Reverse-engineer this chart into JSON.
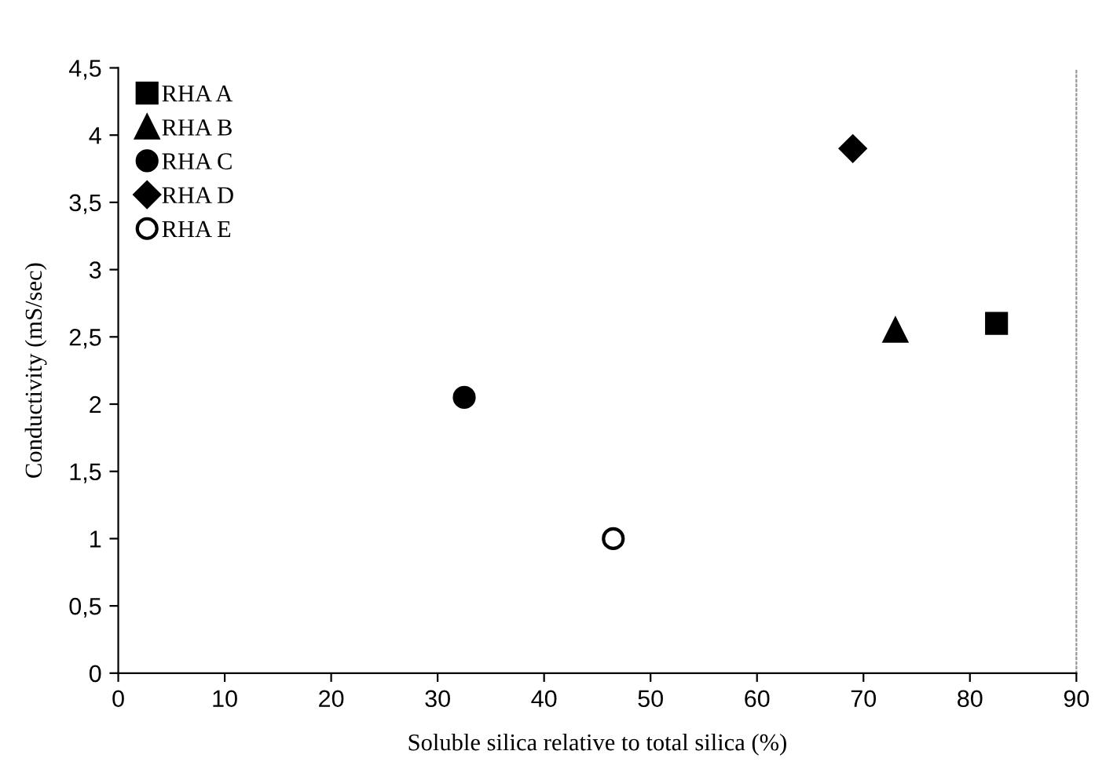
{
  "chart_data": {
    "type": "scatter",
    "xlabel": "Soluble silica relative to total silica (%)",
    "ylabel": "Conductivity (mS/sec)",
    "xlim": [
      0,
      90
    ],
    "xticks": [
      0,
      10,
      20,
      30,
      40,
      50,
      60,
      70,
      80,
      90
    ],
    "ylim": [
      0,
      4.5
    ],
    "yticks": [
      0,
      {
        "value": 0.5,
        "label": "0,5"
      },
      1,
      {
        "value": 1.5,
        "label": "1,5"
      },
      2,
      {
        "value": 2.5,
        "label": "2,5"
      },
      3,
      {
        "value": 3.5,
        "label": "3,5"
      },
      4,
      {
        "value": 4.5,
        "label": "4,5"
      }
    ],
    "grid": false,
    "legend": "top left",
    "series": [
      {
        "name": "RHA A",
        "color": "#000000",
        "marker": "square",
        "x": [
          82.5
        ],
        "values": [
          2.6
        ]
      },
      {
        "name": "RHA B",
        "color": "#000000",
        "marker": "triangle",
        "x": [
          73
        ],
        "values": [
          2.55
        ]
      },
      {
        "name": "RHA C",
        "color": "#000000",
        "marker": "circle",
        "x": [
          32.5
        ],
        "values": [
          2.05
        ]
      },
      {
        "name": "RHA D",
        "color": "#000000",
        "marker": "diamond",
        "x": [
          69
        ],
        "values": [
          3.9
        ]
      },
      {
        "name": "RHA E",
        "color": "#ffffff",
        "marker": "circle",
        "x": [
          46.5
        ],
        "values": [
          1.0
        ]
      }
    ]
  }
}
